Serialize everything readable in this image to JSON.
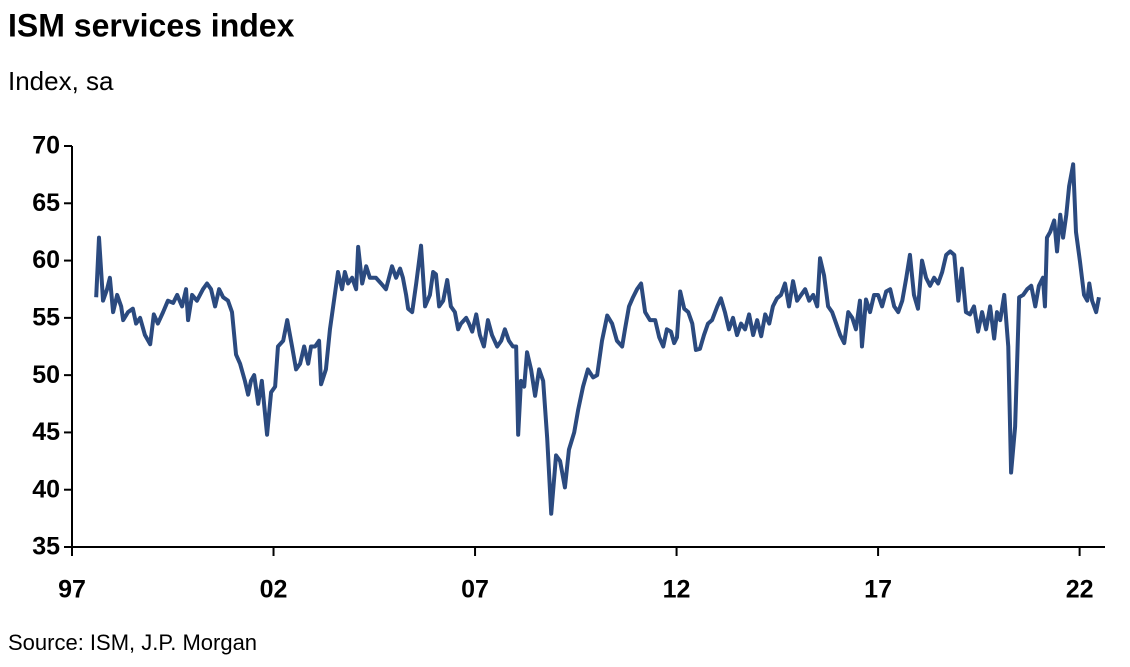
{
  "chart_data": {
    "type": "line",
    "title": "ISM services index",
    "subtitle": "Index, sa",
    "source": "Source: ISM, J.P. Morgan",
    "xlim": [
      1997,
      2022.63
    ],
    "xticks": [
      {
        "value": 1997,
        "label": "97"
      },
      {
        "value": 2002,
        "label": "02"
      },
      {
        "value": 2007,
        "label": "07"
      },
      {
        "value": 2012,
        "label": "12"
      },
      {
        "value": 2017,
        "label": "17"
      },
      {
        "value": 2022,
        "label": "22"
      }
    ],
    "ylim": [
      35,
      70
    ],
    "yticks": [
      35,
      40,
      45,
      50,
      55,
      60,
      65,
      70
    ],
    "series": [
      {
        "color": "#2b4a7f",
        "x": [
          1997.6,
          1997.67,
          1997.77,
          1997.87,
          1997.94,
          1998.02,
          1998.12,
          1998.22,
          1998.27,
          1998.39,
          1998.51,
          1998.59,
          1998.69,
          1998.81,
          1998.94,
          1999.03,
          1999.13,
          1999.26,
          1999.38,
          1999.51,
          1999.61,
          1999.73,
          1999.83,
          1999.88,
          1999.98,
          2000.1,
          2000.25,
          2000.35,
          2000.45,
          2000.55,
          2000.65,
          2000.75,
          2000.87,
          2000.97,
          2001.07,
          2001.17,
          2001.29,
          2001.37,
          2001.44,
          2001.52,
          2001.62,
          2001.71,
          2001.84,
          2001.94,
          2002.04,
          2002.11,
          2002.24,
          2002.34,
          2002.46,
          2002.56,
          2002.66,
          2002.76,
          2002.86,
          2002.93,
          2003.03,
          2003.13,
          2003.18,
          2003.3,
          2003.4,
          2003.48,
          2003.6,
          2003.7,
          2003.77,
          2003.85,
          2003.95,
          2004.05,
          2004.1,
          2004.2,
          2004.3,
          2004.39,
          2004.54,
          2004.67,
          2004.79,
          2004.94,
          2005.04,
          2005.14,
          2005.21,
          2005.29,
          2005.34,
          2005.44,
          2005.54,
          2005.66,
          2005.76,
          2005.88,
          2005.96,
          2006.03,
          2006.11,
          2006.21,
          2006.31,
          2006.4,
          2006.5,
          2006.58,
          2006.65,
          2006.78,
          2006.85,
          2006.93,
          2007.03,
          2007.12,
          2007.22,
          2007.32,
          2007.42,
          2007.55,
          2007.65,
          2007.74,
          2007.84,
          2007.94,
          2008.02,
          2008.07,
          2008.14,
          2008.22,
          2008.29,
          2008.39,
          2008.49,
          2008.59,
          2008.69,
          2008.79,
          2008.89,
          2009.01,
          2009.11,
          2009.23,
          2009.33,
          2009.46,
          2009.56,
          2009.68,
          2009.8,
          2009.93,
          2010.03,
          2010.15,
          2010.28,
          2010.4,
          2010.52,
          2010.65,
          2010.72,
          2010.82,
          2010.92,
          2011.02,
          2011.12,
          2011.22,
          2011.34,
          2011.47,
          2011.57,
          2011.67,
          2011.76,
          2011.86,
          2011.94,
          2012.01,
          2012.09,
          2012.19,
          2012.29,
          2012.39,
          2012.48,
          2012.58,
          2012.68,
          2012.78,
          2012.88,
          2013.01,
          2013.1,
          2013.2,
          2013.3,
          2013.4,
          2013.5,
          2013.6,
          2013.7,
          2013.8,
          2013.9,
          2014.0,
          2014.1,
          2014.2,
          2014.3,
          2014.39,
          2014.49,
          2014.59,
          2014.69,
          2014.79,
          2014.89,
          2014.99,
          2015.09,
          2015.19,
          2015.29,
          2015.39,
          2015.49,
          2015.56,
          2015.66,
          2015.76,
          2015.86,
          2015.96,
          2016.06,
          2016.16,
          2016.26,
          2016.36,
          2016.45,
          2016.55,
          2016.6,
          2016.7,
          2016.8,
          2016.9,
          2017.0,
          2017.1,
          2017.2,
          2017.3,
          2017.4,
          2017.5,
          2017.6,
          2017.7,
          2017.79,
          2017.89,
          2017.99,
          2018.09,
          2018.19,
          2018.29,
          2018.39,
          2018.49,
          2018.59,
          2018.69,
          2018.79,
          2018.89,
          2018.99,
          2019.08,
          2019.18,
          2019.28,
          2019.38,
          2019.48,
          2019.58,
          2019.68,
          2019.78,
          2019.88,
          2019.95,
          2020.03,
          2020.13,
          2020.23,
          2020.3,
          2020.4,
          2020.5,
          2020.6,
          2020.7,
          2020.8,
          2020.9,
          2020.99,
          2021.09,
          2021.14,
          2021.19,
          2021.27,
          2021.37,
          2021.44,
          2021.52,
          2021.59,
          2021.67,
          2021.74,
          2021.84,
          2021.91,
          2022.01,
          2022.11,
          2022.19,
          2022.24,
          2022.31,
          2022.41,
          2022.48
        ],
        "values": [
          56.8,
          62,
          56.5,
          57.5,
          58.5,
          55.5,
          57,
          56,
          54.8,
          55.5,
          55.8,
          54.5,
          55,
          53.5,
          52.7,
          55.3,
          54.5,
          55.5,
          56.5,
          56.3,
          57,
          56,
          57.5,
          54.8,
          57,
          56.5,
          57.5,
          58,
          57.5,
          56,
          57.5,
          56.8,
          56.5,
          55.5,
          51.8,
          51,
          49.5,
          48.3,
          49.5,
          50,
          47.5,
          49.5,
          44.8,
          48.5,
          49,
          52.5,
          53,
          54.8,
          52.5,
          50.5,
          51,
          52.5,
          51,
          52.5,
          52.5,
          53,
          49.2,
          50.5,
          54,
          56,
          59,
          57.5,
          59,
          58,
          58.5,
          57.5,
          61.2,
          58,
          59.5,
          58.5,
          58.5,
          58,
          57.5,
          59.5,
          58.5,
          59.3,
          58.5,
          57,
          55.8,
          55.5,
          58,
          61.3,
          56,
          57,
          59,
          58.8,
          56,
          56.5,
          58.3,
          56,
          55.5,
          54,
          54.5,
          55,
          54.5,
          53.8,
          55.3,
          53.5,
          52.5,
          54.8,
          53.5,
          52.5,
          53,
          54,
          53,
          52.5,
          52.5,
          44.8,
          49.5,
          49,
          52,
          50.5,
          48.2,
          50.5,
          49.5,
          44.5,
          37.9,
          43,
          42.5,
          40.2,
          43.5,
          45,
          47,
          49,
          50.5,
          49.8,
          50,
          53,
          55.2,
          54.5,
          53,
          52.5,
          54,
          56,
          56.8,
          57.5,
          58,
          55.5,
          54.8,
          54.8,
          53.3,
          52.5,
          54,
          53.8,
          52.8,
          53.3,
          57.3,
          55.8,
          55.5,
          54.5,
          52.2,
          52.3,
          53.5,
          54.5,
          54.8,
          56,
          56.7,
          55.5,
          54,
          55,
          53.5,
          54.5,
          54,
          55.3,
          53.5,
          54.8,
          53.4,
          55.3,
          54.5,
          56,
          56.7,
          57,
          58,
          56,
          58.2,
          56.5,
          57,
          57.5,
          56.5,
          57,
          56,
          60.2,
          58.7,
          56,
          55.5,
          54.5,
          53.5,
          52.8,
          55.5,
          55,
          54,
          56.5,
          52.5,
          56.6,
          55.5,
          57,
          57,
          56,
          57.3,
          57.5,
          56,
          55.5,
          56.5,
          58.5,
          60.5,
          57,
          55.8,
          60,
          58.5,
          57.8,
          58.5,
          58,
          59,
          60.5,
          60.8,
          60.5,
          56.5,
          59.3,
          55.5,
          55.3,
          56,
          53.8,
          55.5,
          54,
          56,
          53.2,
          55.5,
          54.8,
          57,
          52.5,
          41.5,
          45.5,
          56.8,
          57,
          57.5,
          57.8,
          56,
          57.8,
          58.5,
          56,
          62,
          62.5,
          63.5,
          60.8,
          64,
          62,
          64,
          66.5,
          68.4,
          62.5,
          59.9,
          57,
          56.5,
          58,
          56.5,
          55.5,
          56.8
        ]
      }
    ]
  }
}
